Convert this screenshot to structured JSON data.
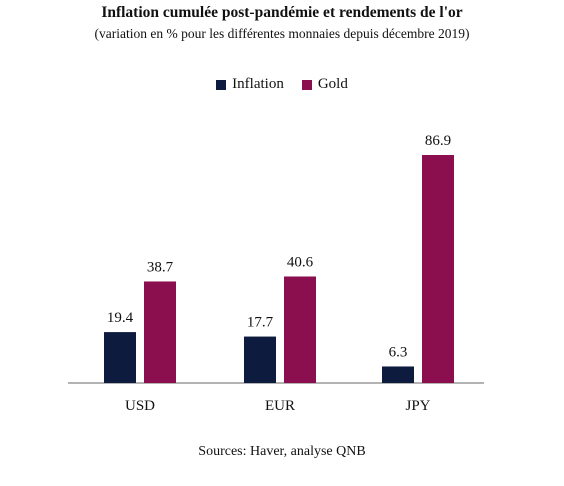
{
  "chart_data": {
    "type": "bar",
    "title": "Inflation cumulée post-pandémie et rendements de l'or",
    "subtitle": "(variation en % pour les différentes monnaies depuis décembre 2019)",
    "categories": [
      "USD",
      "EUR",
      "JPY"
    ],
    "series": [
      {
        "name": "Inflation",
        "values": [
          19.4,
          17.7,
          6.3
        ],
        "color": "#0d1b3e"
      },
      {
        "name": "Gold",
        "values": [
          38.7,
          40.6,
          86.9
        ],
        "color": "#8b0f4f"
      }
    ],
    "xlabel": "",
    "ylabel": "",
    "ylim": [
      0,
      86.9
    ],
    "legend_position": "top-center",
    "grid": false,
    "source": "Sources: Haver, analyse QNB"
  }
}
